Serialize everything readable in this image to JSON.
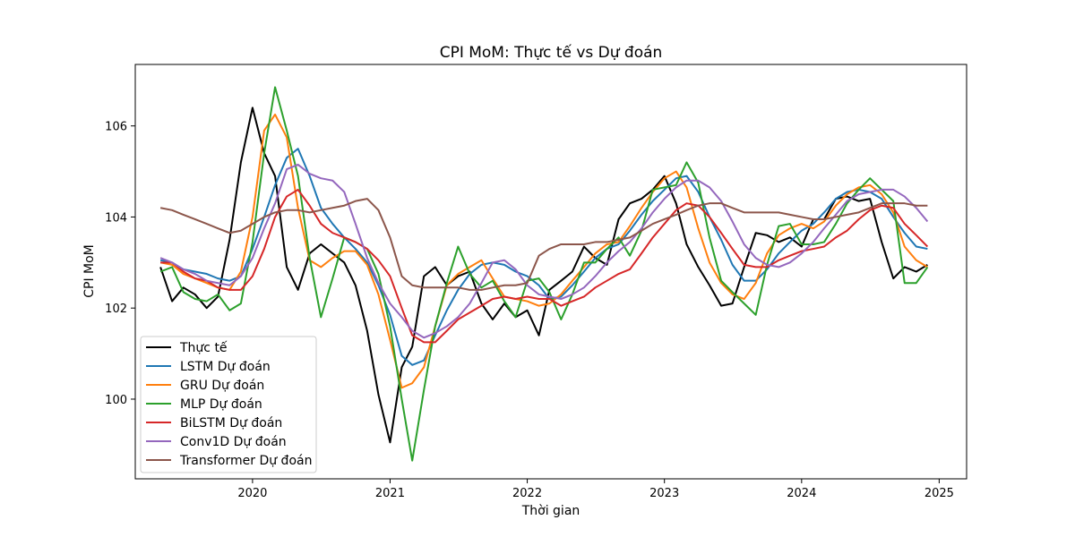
{
  "chart_data": {
    "type": "line",
    "title": "CPI MoM: Thực tế vs Dự đoán",
    "xlabel": "Thời gian",
    "ylabel": "CPI MoM",
    "xlim": [
      "2019-02-23",
      "2025-03-15"
    ],
    "ylim": [
      98.25,
      107.35
    ],
    "x_ticks": [
      "2020",
      "2021",
      "2022",
      "2023",
      "2024",
      "2025"
    ],
    "x_tick_dates": [
      "2020-01-01",
      "2021-01-01",
      "2022-01-01",
      "2023-01-01",
      "2024-01-01",
      "2025-01-01"
    ],
    "y_ticks": [
      100,
      102,
      104,
      106
    ],
    "grid": false,
    "legend_position": "lower-left",
    "x": [
      "2019-05",
      "2019-06",
      "2019-07",
      "2019-08",
      "2019-09",
      "2019-10",
      "2019-11",
      "2019-12",
      "2020-01",
      "2020-02",
      "2020-03",
      "2020-04",
      "2020-05",
      "2020-06",
      "2020-07",
      "2020-08",
      "2020-09",
      "2020-10",
      "2020-11",
      "2020-12",
      "2021-01",
      "2021-02",
      "2021-03",
      "2021-04",
      "2021-05",
      "2021-06",
      "2021-07",
      "2021-08",
      "2021-09",
      "2021-10",
      "2021-11",
      "2021-12",
      "2022-01",
      "2022-02",
      "2022-03",
      "2022-04",
      "2022-05",
      "2022-06",
      "2022-07",
      "2022-08",
      "2022-09",
      "2022-10",
      "2022-11",
      "2022-12",
      "2023-01",
      "2023-02",
      "2023-03",
      "2023-04",
      "2023-05",
      "2023-06",
      "2023-07",
      "2023-08",
      "2023-09",
      "2023-10",
      "2023-11",
      "2023-12",
      "2024-01",
      "2024-02",
      "2024-03",
      "2024-04",
      "2024-05",
      "2024-06",
      "2024-07",
      "2024-08",
      "2024-09",
      "2024-10",
      "2024-11",
      "2024-12"
    ],
    "series": [
      {
        "name": "Thực tế",
        "color": "#000000",
        "values": [
          102.9,
          102.15,
          102.45,
          102.3,
          102.0,
          102.25,
          103.5,
          105.2,
          106.4,
          105.4,
          104.9,
          102.9,
          102.4,
          103.2,
          103.4,
          103.2,
          103.0,
          102.5,
          101.5,
          100.1,
          99.05,
          100.7,
          101.15,
          102.7,
          102.9,
          102.5,
          102.7,
          102.8,
          102.1,
          101.75,
          102.1,
          101.8,
          101.95,
          101.4,
          102.4,
          102.6,
          102.8,
          103.35,
          103.1,
          102.95,
          103.95,
          104.3,
          104.4,
          104.6,
          104.9,
          104.3,
          103.4,
          102.9,
          102.5,
          102.05,
          102.1,
          102.9,
          103.65,
          103.6,
          103.45,
          103.55,
          103.35,
          103.95,
          103.95,
          104.4,
          104.45,
          104.35,
          104.4,
          103.45,
          102.65,
          102.9,
          102.8,
          102.95
        ]
      },
      {
        "name": "LSTM Dự đoán",
        "color": "#1f77b4",
        "values": [
          103.05,
          103.0,
          102.85,
          102.8,
          102.75,
          102.65,
          102.6,
          102.7,
          103.3,
          104.0,
          104.7,
          105.3,
          105.5,
          104.9,
          104.2,
          103.85,
          103.55,
          103.3,
          103.0,
          102.5,
          101.85,
          100.95,
          100.75,
          100.85,
          101.4,
          101.95,
          102.4,
          102.75,
          102.95,
          103.0,
          102.95,
          102.8,
          102.7,
          102.5,
          102.2,
          102.25,
          102.5,
          102.8,
          103.1,
          103.3,
          103.4,
          103.7,
          104.05,
          104.35,
          104.6,
          104.85,
          104.9,
          104.55,
          104.0,
          103.5,
          102.95,
          102.6,
          102.6,
          102.85,
          103.2,
          103.45,
          103.7,
          103.85,
          104.1,
          104.4,
          104.55,
          104.6,
          104.55,
          104.4,
          104.0,
          103.65,
          103.35,
          103.3
        ]
      },
      {
        "name": "GRU Dự đoán",
        "color": "#ff7f0e",
        "values": [
          103.0,
          102.95,
          102.75,
          102.65,
          102.55,
          102.45,
          102.4,
          102.8,
          104.0,
          105.9,
          106.25,
          105.75,
          104.2,
          103.05,
          102.9,
          103.1,
          103.25,
          103.25,
          102.95,
          102.3,
          101.3,
          100.25,
          100.35,
          100.7,
          101.6,
          102.5,
          102.75,
          102.9,
          103.05,
          102.65,
          102.25,
          102.2,
          102.15,
          102.05,
          102.1,
          102.3,
          102.6,
          102.9,
          103.2,
          103.4,
          103.45,
          103.8,
          104.2,
          104.55,
          104.85,
          105.0,
          104.65,
          103.75,
          103.0,
          102.55,
          102.3,
          102.2,
          102.55,
          103.2,
          103.6,
          103.75,
          103.85,
          103.75,
          103.9,
          104.25,
          104.5,
          104.65,
          104.7,
          104.5,
          104.1,
          103.35,
          103.05,
          102.9
        ]
      },
      {
        "name": "MLP Dự đoán",
        "color": "#2ca02c",
        "values": [
          102.8,
          102.9,
          102.35,
          102.2,
          102.15,
          102.3,
          101.95,
          102.1,
          103.45,
          105.4,
          106.85,
          105.9,
          104.9,
          103.1,
          101.8,
          102.65,
          103.55,
          103.45,
          103.3,
          102.75,
          101.6,
          100.0,
          98.65,
          100.2,
          101.6,
          102.55,
          103.35,
          102.75,
          102.45,
          102.6,
          102.15,
          101.8,
          102.6,
          102.65,
          102.35,
          101.75,
          102.3,
          103.0,
          103.0,
          103.3,
          103.55,
          103.15,
          103.7,
          104.6,
          104.65,
          104.7,
          105.2,
          104.75,
          103.55,
          102.6,
          102.35,
          102.1,
          101.85,
          102.95,
          103.8,
          103.85,
          103.4,
          103.4,
          103.45,
          103.85,
          104.3,
          104.6,
          104.85,
          104.6,
          104.35,
          102.55,
          102.55,
          102.9
        ]
      },
      {
        "name": "BiLSTM Dự đoán",
        "color": "#d62728",
        "values": [
          103.0,
          103.0,
          102.8,
          102.65,
          102.6,
          102.45,
          102.4,
          102.4,
          102.7,
          103.3,
          104.0,
          104.45,
          104.6,
          104.25,
          103.85,
          103.65,
          103.55,
          103.45,
          103.3,
          103.05,
          102.7,
          102.0,
          101.4,
          101.25,
          101.25,
          101.5,
          101.75,
          101.9,
          102.05,
          102.2,
          102.25,
          102.2,
          102.25,
          102.2,
          102.2,
          102.05,
          102.15,
          102.25,
          102.45,
          102.6,
          102.75,
          102.85,
          103.2,
          103.55,
          103.85,
          104.15,
          104.3,
          104.25,
          104.0,
          103.65,
          103.3,
          102.95,
          102.9,
          102.9,
          103.05,
          103.15,
          103.25,
          103.3,
          103.35,
          103.55,
          103.7,
          103.95,
          104.15,
          104.25,
          104.2,
          103.85,
          103.6,
          103.35
        ]
      },
      {
        "name": "Conv1D Dự đoán",
        "color": "#9467bd",
        "values": [
          103.1,
          103.0,
          102.85,
          102.75,
          102.6,
          102.55,
          102.5,
          102.7,
          103.1,
          103.75,
          104.3,
          105.05,
          105.15,
          104.95,
          104.85,
          104.8,
          104.55,
          103.85,
          103.1,
          102.55,
          102.1,
          101.8,
          101.5,
          101.35,
          101.45,
          101.6,
          101.8,
          102.1,
          102.55,
          103.0,
          103.05,
          102.85,
          102.5,
          102.3,
          102.25,
          102.2,
          102.3,
          102.45,
          102.7,
          103.0,
          103.25,
          103.45,
          103.75,
          104.1,
          104.4,
          104.65,
          104.8,
          104.8,
          104.65,
          104.35,
          103.9,
          103.4,
          103.1,
          102.95,
          102.9,
          103.0,
          103.2,
          103.45,
          103.75,
          104.05,
          104.35,
          104.5,
          104.55,
          104.6,
          104.6,
          104.45,
          104.2,
          103.9
        ]
      },
      {
        "name": "Transformer Dự đoán",
        "color": "#8c564b",
        "values": [
          104.2,
          104.15,
          104.05,
          103.95,
          103.85,
          103.75,
          103.65,
          103.7,
          103.85,
          104.0,
          104.1,
          104.15,
          104.15,
          104.1,
          104.15,
          104.2,
          104.25,
          104.35,
          104.4,
          104.15,
          103.55,
          102.7,
          102.5,
          102.45,
          102.45,
          102.45,
          102.45,
          102.4,
          102.4,
          102.45,
          102.5,
          102.5,
          102.55,
          103.15,
          103.3,
          103.4,
          103.4,
          103.4,
          103.45,
          103.45,
          103.5,
          103.55,
          103.7,
          103.85,
          103.95,
          104.05,
          104.15,
          104.25,
          104.3,
          104.3,
          104.2,
          104.1,
          104.1,
          104.1,
          104.1,
          104.05,
          104.0,
          103.95,
          103.95,
          104.0,
          104.05,
          104.1,
          104.2,
          104.3,
          104.3,
          104.3,
          104.25,
          104.25
        ]
      }
    ]
  }
}
